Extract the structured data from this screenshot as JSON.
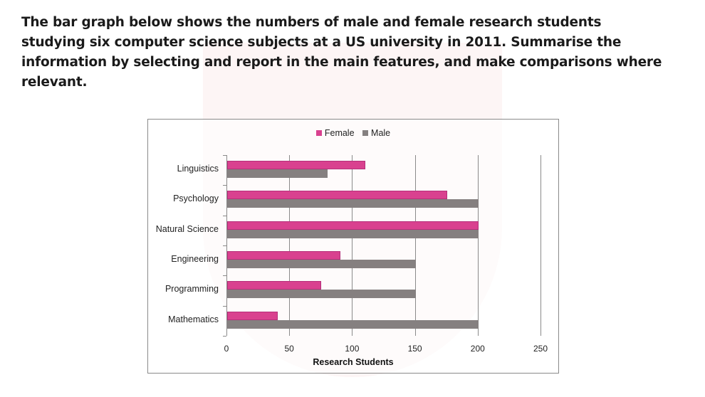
{
  "prompt": {
    "text": "The bar graph below shows the numbers of male and female research students studying six computer science subjects at a US university in 2011. Summarise the information by selecting and report in the main features, and make comparisons where relevant."
  },
  "colors": {
    "female": "#d9418f",
    "male": "#858080"
  },
  "chart_data": {
    "type": "bar",
    "orientation": "horizontal",
    "title": "",
    "categories": [
      "Linguistics",
      "Psychology",
      "Natural Science",
      "Engineering",
      "Programming",
      "Mathematics"
    ],
    "series": [
      {
        "name": "Female",
        "values": [
          110,
          175,
          200,
          90,
          75,
          40
        ]
      },
      {
        "name": "Male",
        "values": [
          80,
          200,
          200,
          150,
          150,
          200
        ]
      }
    ],
    "xlabel": "Research Students",
    "ylabel": "",
    "xlim": [
      0,
      250
    ],
    "xticks": [
      "0",
      "50",
      "100",
      "150",
      "200",
      "250"
    ],
    "grid": true,
    "legend_position": "top"
  },
  "legend": {
    "female": "Female",
    "male": "Male"
  }
}
